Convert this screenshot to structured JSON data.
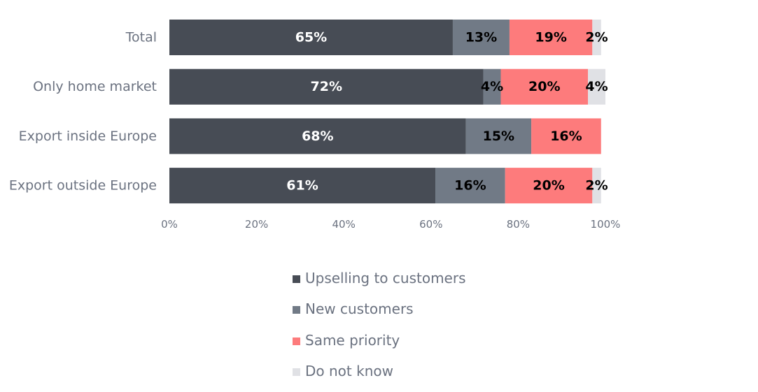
{
  "chart_data": {
    "type": "bar",
    "orientation": "horizontal",
    "stacked": true,
    "categories": [
      "Total",
      "Only home market",
      "Export inside Europe",
      "Export outside Europe"
    ],
    "series": [
      {
        "name": "Upselling to customers",
        "color": "#474c55",
        "label_color": "#ffffff",
        "values": [
          65,
          72,
          68,
          61
        ],
        "labels": [
          "65%",
          "72%",
          "68%",
          "61%"
        ]
      },
      {
        "name": "New customers",
        "color": "#717a86",
        "label_color": "#000000",
        "values": [
          13,
          4,
          15,
          16
        ],
        "labels": [
          "13%",
          "4%",
          "15%",
          "16%"
        ]
      },
      {
        "name": "Same priority",
        "color": "#fd7b7c",
        "label_color": "#000000",
        "values": [
          19,
          20,
          16,
          20
        ],
        "labels": [
          "19%",
          "20%",
          "16%",
          "20%"
        ]
      },
      {
        "name": "Do not know",
        "color": "#e0e1e5",
        "label_color": "#000000",
        "values": [
          2,
          4,
          0,
          2
        ],
        "labels": [
          "2%",
          "4%",
          "",
          "2%"
        ]
      }
    ],
    "x_ticks": [
      "0%",
      "20%",
      "40%",
      "60%",
      "80%",
      "100%"
    ],
    "xlim": [
      0,
      100
    ],
    "grid": false,
    "legend_position": "bottom"
  }
}
